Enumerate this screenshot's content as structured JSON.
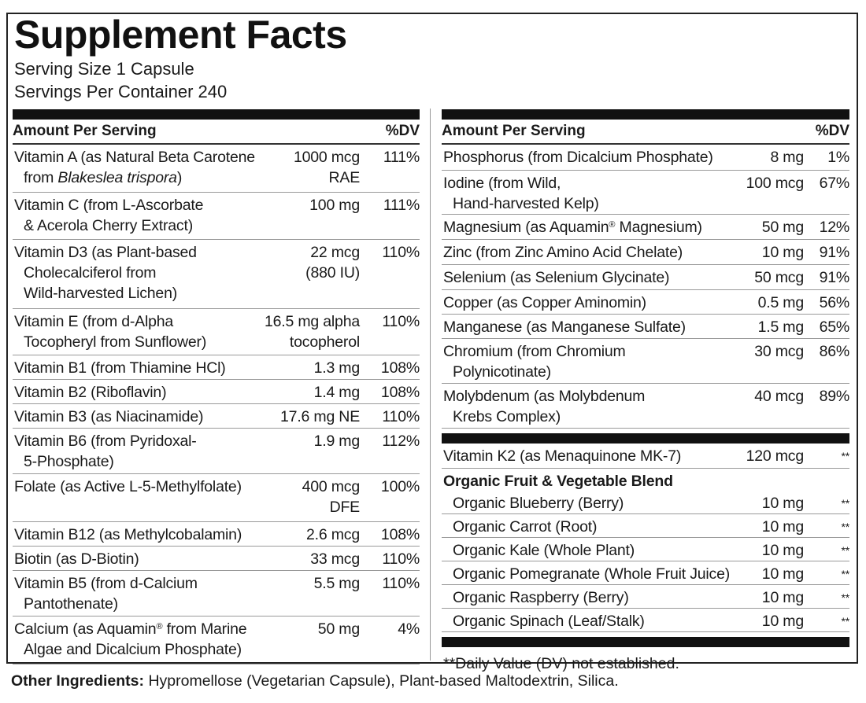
{
  "title": "Supplement Facts",
  "serving_size": "Serving Size 1 Capsule",
  "servings_per_container": "Servings Per Container 240",
  "header": {
    "amount_per_serving": "Amount Per Serving",
    "dv": "%DV"
  },
  "left_rows": [
    {
      "name": [
        "Vitamin A (as Natural Beta Carotene",
        "from Blakeslea trispora)"
      ],
      "amount": [
        "1000 mcg",
        "RAE"
      ],
      "dv": "111%"
    },
    {
      "name": [
        "Vitamin C (from L-Ascorbate",
        "& Acerola Cherry Extract)"
      ],
      "amount": [
        "100 mg"
      ],
      "dv": "111%"
    },
    {
      "name": [
        "Vitamin D3 (as Plant-based",
        "Cholecalciferol from",
        "Wild-harvested Lichen)"
      ],
      "amount": [
        "22 mcg",
        "(880 IU)"
      ],
      "dv": "110%"
    },
    {
      "name": [
        "Vitamin E (from d-Alpha",
        "Tocopheryl from Sunflower)"
      ],
      "amount": [
        "16.5 mg alpha",
        "tocopherol"
      ],
      "dv": "110%"
    },
    {
      "name": [
        "Vitamin B1 (from Thiamine HCl)"
      ],
      "amount": [
        "1.3 mg"
      ],
      "dv": "108%"
    },
    {
      "name": [
        "Vitamin B2 (Riboflavin)"
      ],
      "amount": [
        "1.4 mg"
      ],
      "dv": "108%"
    },
    {
      "name": [
        "Vitamin B3 (as Niacinamide)"
      ],
      "amount": [
        "17.6 mg NE"
      ],
      "dv": "110%"
    },
    {
      "name": [
        "Vitamin B6 (from Pyridoxal-",
        "5-Phosphate)"
      ],
      "amount": [
        "1.9 mg"
      ],
      "dv": "112%"
    },
    {
      "name": [
        "Folate (as Active L-5-Methylfolate)"
      ],
      "amount": [
        "400 mcg",
        "DFE"
      ],
      "dv": "100%"
    },
    {
      "name": [
        "Vitamin B12 (as Methylcobalamin)"
      ],
      "amount": [
        "2.6 mcg"
      ],
      "dv": "108%"
    },
    {
      "name": [
        "Biotin (as D-Biotin)"
      ],
      "amount": [
        "33 mcg"
      ],
      "dv": "110%"
    },
    {
      "name": [
        "Vitamin B5 (from d-Calcium",
        "Pantothenate)"
      ],
      "amount": [
        "5.5 mg"
      ],
      "dv": "110%"
    },
    {
      "name": [
        "Calcium (as Aquamin® from Marine",
        "Algae and Dicalcium Phosphate)"
      ],
      "amount": [
        "50 mg"
      ],
      "dv": "4%"
    }
  ],
  "right_rows": [
    {
      "name": [
        "Phosphorus (from Dicalcium Phosphate)"
      ],
      "amount": [
        "8 mg"
      ],
      "dv": "1%"
    },
    {
      "name": [
        "Iodine (from Wild,",
        "Hand-harvested Kelp)"
      ],
      "amount": [
        "100 mcg"
      ],
      "dv": "67%"
    },
    {
      "name": [
        "Magnesium (as Aquamin® Magnesium)"
      ],
      "amount": [
        "50 mg"
      ],
      "dv": "12%"
    },
    {
      "name": [
        "Zinc (from Zinc Amino Acid Chelate)"
      ],
      "amount": [
        "10 mg"
      ],
      "dv": "91%"
    },
    {
      "name": [
        "Selenium (as Selenium Glycinate)"
      ],
      "amount": [
        "50 mcg"
      ],
      "dv": "91%"
    },
    {
      "name": [
        "Copper (as Copper Aminomin)"
      ],
      "amount": [
        "0.5 mg"
      ],
      "dv": "56%"
    },
    {
      "name": [
        "Manganese (as Manganese Sulfate)"
      ],
      "amount": [
        "1.5 mg"
      ],
      "dv": "65%"
    },
    {
      "name": [
        "Chromium (from Chromium",
        "Polynicotinate)"
      ],
      "amount": [
        "30 mcg"
      ],
      "dv": "86%"
    },
    {
      "name": [
        "Molybdenum (as Molybdenum",
        "Krebs Complex)"
      ],
      "amount": [
        "40 mcg"
      ],
      "dv": "89%"
    }
  ],
  "vitamin_k2": {
    "name": "Vitamin K2 (as Menaquinone MK-7)",
    "amount": "120 mcg",
    "dv": "**"
  },
  "blend": {
    "title": "Organic Fruit & Vegetable Blend",
    "items": [
      {
        "name": "Organic Blueberry (Berry)",
        "amount": "10 mg",
        "dv": "**"
      },
      {
        "name": "Organic Carrot (Root)",
        "amount": "10 mg",
        "dv": "**"
      },
      {
        "name": "Organic Kale (Whole Plant)",
        "amount": "10 mg",
        "dv": "**"
      },
      {
        "name": "Organic Pomegranate (Whole Fruit Juice)",
        "amount": "10 mg",
        "dv": "**"
      },
      {
        "name": "Organic Raspberry (Berry)",
        "amount": "10 mg",
        "dv": "**"
      },
      {
        "name": "Organic  Spinach (Leaf/Stalk)",
        "amount": "10 mg",
        "dv": "**"
      }
    ]
  },
  "footnote": "**Daily Value (DV) not established.",
  "other_ingredients": {
    "label": "Other Ingredients:",
    "text": " Hypromellose (Vegetarian Capsule), Plant-based Maltodextrin, Silica."
  }
}
